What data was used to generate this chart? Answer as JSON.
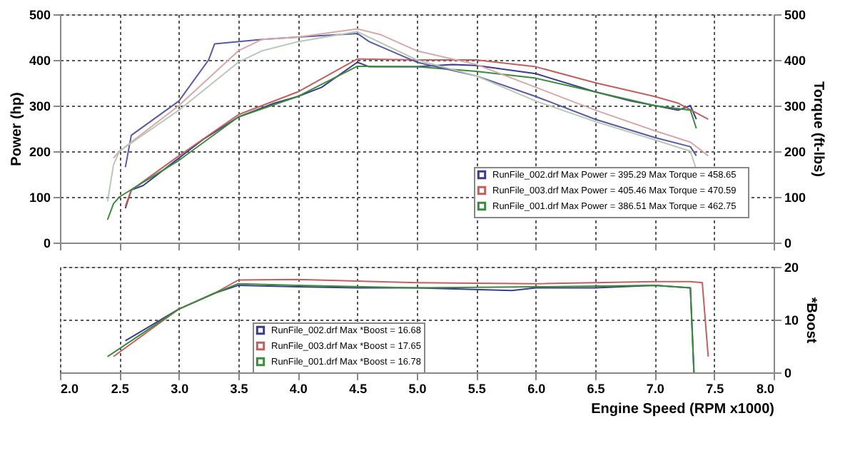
{
  "chart_data": [
    {
      "type": "line",
      "ylabel": "Power (hp)",
      "y2label": "Torque (ft-lbs)",
      "xlim": [
        2.0,
        8.0
      ],
      "xticks": [
        2.0,
        2.5,
        3.0,
        3.5,
        4.0,
        4.5,
        5.0,
        5.5,
        6.0,
        6.5,
        7.0,
        7.5,
        8.0
      ],
      "ylim": [
        0,
        500
      ],
      "yticks": [
        0,
        100,
        200,
        300,
        400,
        500
      ],
      "y2lim": [
        0,
        500
      ],
      "y2ticks": [
        0,
        100,
        200,
        300,
        400,
        500
      ],
      "tick_labels": "y",
      "grid": true,
      "legend": "bottom right",
      "line_style": "solid",
      "marker": "none",
      "series": [
        {
          "name": "RunFile_002.drf Max Power = 395.29    Max Torque = 458.65",
          "color": "#3c3c8c",
          "x": [
            2.55,
            2.6,
            2.7,
            3.0,
            3.2,
            3.5,
            3.8,
            4.0,
            4.2,
            4.5,
            4.6,
            5.0,
            5.3,
            5.5,
            6.0,
            6.5,
            6.8,
            7.0,
            7.2,
            7.3,
            7.35
          ],
          "values": [
            75,
            115,
            125,
            185,
            225,
            275,
            305,
            320,
            340,
            395,
            385,
            385,
            390,
            388,
            370,
            330,
            310,
            300,
            290,
            300,
            270
          ]
        },
        {
          "name": "RunFile_003.drf Max Power = 405.46    Max Torque = 470.59",
          "color": "#c06060",
          "x": [
            2.55,
            2.6,
            3.0,
            3.5,
            4.0,
            4.5,
            5.0,
            5.5,
            6.0,
            6.5,
            7.0,
            7.2,
            7.45
          ],
          "values": [
            80,
            115,
            190,
            280,
            330,
            402,
            400,
            400,
            385,
            350,
            320,
            305,
            270
          ]
        },
        {
          "name": "RunFile_001.drf Max Power = 386.51    Max Torque = 462.75",
          "color": "#3c8a3c",
          "x": [
            2.4,
            2.45,
            2.5,
            3.0,
            3.5,
            4.0,
            4.5,
            5.0,
            5.5,
            6.0,
            6.5,
            7.0,
            7.3,
            7.35
          ],
          "values": [
            50,
            85,
            100,
            180,
            275,
            320,
            386,
            385,
            375,
            360,
            330,
            300,
            290,
            250
          ]
        },
        {
          "color": "#5a5aa0",
          "axis": "y2",
          "x": [
            2.55,
            2.6,
            3.0,
            3.25,
            3.3,
            3.7,
            4.0,
            4.5,
            4.6,
            5.0,
            5.5,
            6.0,
            6.5,
            7.0,
            7.3,
            7.35
          ],
          "values": [
            165,
            235,
            310,
            400,
            435,
            445,
            450,
            458,
            440,
            395,
            365,
            320,
            270,
            230,
            210,
            190
          ]
        },
        {
          "color": "#d8a8a8",
          "axis": "y2",
          "x": [
            2.45,
            2.5,
            3.0,
            3.5,
            3.7,
            4.0,
            4.5,
            4.7,
            5.0,
            5.5,
            6.0,
            6.5,
            7.0,
            7.3,
            7.45
          ],
          "values": [
            185,
            200,
            300,
            420,
            445,
            450,
            468,
            455,
            420,
            390,
            340,
            290,
            245,
            220,
            190
          ]
        },
        {
          "color": "#b8c8b8",
          "axis": "y2",
          "x": [
            2.4,
            2.45,
            2.5,
            3.0,
            3.5,
            3.7,
            4.0,
            4.5,
            5.0,
            5.5,
            6.0,
            6.5,
            7.0,
            7.3,
            7.35
          ],
          "values": [
            90,
            170,
            200,
            290,
            395,
            420,
            440,
            462,
            400,
            365,
            310,
            265,
            225,
            200,
            160
          ]
        }
      ]
    },
    {
      "type": "line",
      "xlabel": "Engine Speed (RPM x1000)",
      "y2label": "*Boost",
      "xlim": [
        2.0,
        8.0
      ],
      "xticks": [
        {
          "value": 2,
          "label": "2.0"
        },
        2.5,
        {
          "value": 3,
          "label": "3.0"
        },
        3.5,
        {
          "value": 4,
          "label": "4.0"
        },
        4.5,
        {
          "value": 5,
          "label": "5.0"
        },
        5.5,
        {
          "value": 6,
          "label": "6.0"
        },
        6.5,
        {
          "value": 7,
          "label": "7.0"
        },
        7.5,
        {
          "value": 8,
          "label": "8.0"
        }
      ],
      "y2lim": [
        0,
        20
      ],
      "y2ticks": [
        0,
        10,
        20
      ],
      "grid": true,
      "legend": "bottom",
      "line_style": "solid",
      "marker": "none",
      "series": [
        {
          "name": "RunFile_002.drf Max *Boost = 16.68",
          "color": "#3c3c8c",
          "axis": "y2",
          "x": [
            2.55,
            3.0,
            3.3,
            3.5,
            4.0,
            4.5,
            5.0,
            5.8,
            6.0,
            6.5,
            7.0,
            7.3,
            7.33
          ],
          "values": [
            6,
            12,
            15,
            16.5,
            16.2,
            16,
            16,
            15.5,
            16,
            16,
            16.5,
            16,
            0
          ]
        },
        {
          "name": "RunFile_003.drf Max *Boost = 17.65",
          "color": "#c06060",
          "axis": "y2",
          "x": [
            2.45,
            3.0,
            3.3,
            3.5,
            4.0,
            5.0,
            6.0,
            7.0,
            7.3,
            7.4,
            7.45
          ],
          "values": [
            3,
            12,
            15,
            17.5,
            17.6,
            17,
            16.8,
            17.2,
            17.2,
            17,
            3
          ]
        },
        {
          "name": "RunFile_001.drf Max *Boost = 16.78",
          "color": "#3c8a3c",
          "axis": "y2",
          "x": [
            2.4,
            3.0,
            3.3,
            3.5,
            4.0,
            5.0,
            6.0,
            7.0,
            7.3,
            7.33
          ],
          "values": [
            3,
            12,
            15,
            16.8,
            16.5,
            16,
            16.2,
            16.5,
            16,
            0
          ]
        }
      ]
    }
  ]
}
